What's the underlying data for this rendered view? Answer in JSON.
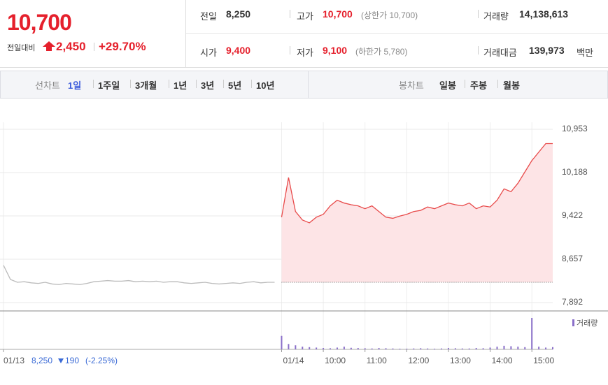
{
  "quote": {
    "price": "10,700",
    "change_label": "전일대비",
    "change": "2,450",
    "change_pct": "+29.70%"
  },
  "summary": {
    "prev_close": {
      "label": "전일",
      "value": "8,250"
    },
    "high": {
      "label": "고가",
      "value": "10,700",
      "note": "(상한가 10,700)"
    },
    "volume": {
      "label": "거래량",
      "value": "14,138,613"
    },
    "open": {
      "label": "시가",
      "value": "9,400"
    },
    "low": {
      "label": "저가",
      "value": "9,100",
      "note": "(하한가 5,780)"
    },
    "amount": {
      "label": "거래대금",
      "value": "139,973",
      "unit": "백만"
    }
  },
  "tabs": {
    "line_label": "선차트",
    "line_periods": [
      "1일",
      "1주일",
      "3개월",
      "1년",
      "3년",
      "5년",
      "10년"
    ],
    "candle_label": "봉차트",
    "candle_periods": [
      "일봉",
      "주봉",
      "월봉"
    ]
  },
  "chart_data": {
    "type": "line",
    "x": [
      "01/13",
      null,
      null,
      null,
      null,
      null,
      null,
      null,
      null,
      null,
      null,
      null,
      null,
      null,
      null,
      null,
      null,
      null,
      null,
      null,
      null,
      null,
      null,
      null,
      null,
      null,
      null,
      null,
      null,
      null,
      null,
      null,
      null,
      null,
      null,
      null,
      null,
      null,
      null,
      null,
      "01/14",
      null,
      null,
      null,
      null,
      null,
      "10:00",
      null,
      null,
      null,
      null,
      null,
      "11:00",
      null,
      null,
      null,
      null,
      null,
      "12:00",
      null,
      null,
      null,
      null,
      null,
      "13:00",
      null,
      null,
      null,
      null,
      null,
      "14:00",
      null,
      null,
      null,
      null,
      null,
      "15:00",
      null,
      null,
      null
    ],
    "series": [
      {
        "color": "#bbbbbb",
        "values": [
          8550,
          8300,
          8250,
          8260,
          8240,
          8230,
          8250,
          8220,
          8210,
          8230,
          8220,
          8210,
          8230,
          8260,
          8270,
          8280,
          8270,
          8270,
          8280,
          8260,
          8270,
          8260,
          8270,
          8250,
          8260,
          8260,
          8240,
          8230,
          8240,
          8250,
          8230,
          8220,
          8230,
          8240,
          8230,
          8250,
          8260,
          8240,
          8250,
          8250,
          null,
          null,
          null,
          null,
          null,
          null,
          null,
          null,
          null,
          null,
          null,
          null,
          null,
          null,
          null,
          null,
          null,
          null,
          null,
          null,
          null,
          null,
          null,
          null,
          null,
          null,
          null,
          null,
          null,
          null,
          null,
          null,
          null,
          null,
          null,
          null,
          null,
          null,
          null,
          null
        ]
      },
      {
        "color": "#e84a4a",
        "fill": "#fde4e6",
        "values": [
          null,
          null,
          null,
          null,
          null,
          null,
          null,
          null,
          null,
          null,
          null,
          null,
          null,
          null,
          null,
          null,
          null,
          null,
          null,
          null,
          null,
          null,
          null,
          null,
          null,
          null,
          null,
          null,
          null,
          null,
          null,
          null,
          null,
          null,
          null,
          null,
          null,
          null,
          null,
          null,
          9400,
          10100,
          9500,
          9350,
          9300,
          9400,
          9450,
          9600,
          9700,
          9650,
          9620,
          9600,
          9550,
          9600,
          9500,
          9400,
          9380,
          9420,
          9450,
          9500,
          9520,
          9580,
          9550,
          9600,
          9650,
          9620,
          9600,
          9650,
          9550,
          9600,
          9580,
          9700,
          9900,
          9850,
          10000,
          10200,
          10400,
          10550,
          10700,
          10700
        ]
      }
    ],
    "baseline": 8250,
    "ylim": [
      7892,
      10953
    ],
    "yticks": [
      {
        "value": 7892,
        "label": "7,892"
      },
      {
        "value": 8657,
        "label": "8,657"
      },
      {
        "value": 9422,
        "label": "9,422"
      },
      {
        "value": 10188,
        "label": "10,188"
      },
      {
        "value": 10953,
        "label": "10,953"
      }
    ],
    "grid": true,
    "volume": {
      "name": "거래량",
      "color": "#8a6fc9",
      "values": [
        null,
        null,
        null,
        null,
        null,
        null,
        null,
        null,
        null,
        null,
        null,
        null,
        null,
        null,
        null,
        null,
        null,
        null,
        null,
        null,
        null,
        null,
        null,
        null,
        null,
        null,
        null,
        null,
        null,
        null,
        null,
        null,
        null,
        null,
        null,
        null,
        null,
        null,
        null,
        null,
        300000,
        120000,
        90000,
        60000,
        50000,
        40000,
        30000,
        25000,
        40000,
        60000,
        35000,
        30000,
        25000,
        20000,
        30000,
        25000,
        20000,
        15000,
        15000,
        20000,
        25000,
        20000,
        15000,
        20000,
        30000,
        25000,
        20000,
        20000,
        30000,
        25000,
        40000,
        60000,
        80000,
        70000,
        60000,
        50000,
        700000,
        60000,
        40000,
        50000
      ]
    },
    "prev_day": {
      "close": "8,250",
      "change": "190",
      "change_pct": "(-2.25%)"
    }
  }
}
